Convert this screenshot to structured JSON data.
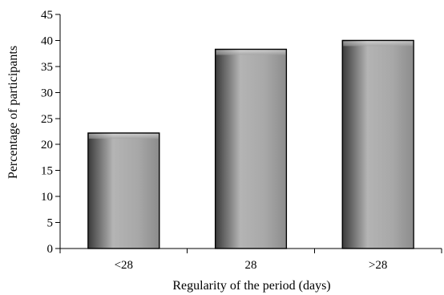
{
  "chart_data": {
    "type": "bar",
    "categories": [
      "<28",
      "28",
      ">28"
    ],
    "values": [
      22.2,
      38.3,
      40
    ],
    "title": "",
    "xlabel": "Regularity of the period (days)",
    "ylabel": "Percentage of participants",
    "ylim": [
      0,
      45
    ],
    "yticks": [
      0,
      5,
      10,
      15,
      20,
      25,
      30,
      35,
      40,
      45
    ],
    "grid": false,
    "legend": "none",
    "colors": {
      "bar_dark": "#3a3a3a",
      "bar_light": "#b4b4b4",
      "bar_mid": "#9a9a9a",
      "axis": "#000000"
    }
  }
}
